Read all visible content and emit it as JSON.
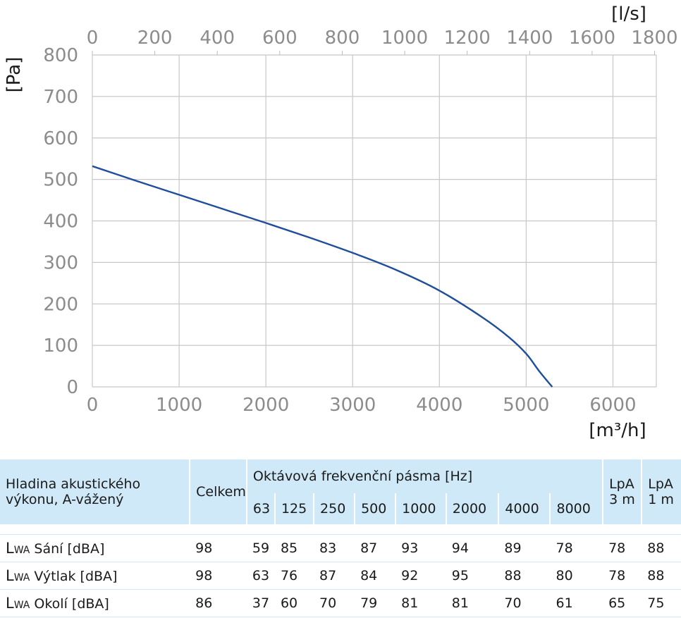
{
  "chart_data": {
    "type": "line",
    "xlabel": "[m³/h]",
    "x2label": "[l/s]",
    "ylabel": "[Pa]",
    "xlim": [
      0,
      6500
    ],
    "x2lim": [
      0,
      1805.6
    ],
    "ylim": [
      0,
      800
    ],
    "xticks": [
      0,
      1000,
      2000,
      3000,
      4000,
      5000,
      6000
    ],
    "x2ticks": [
      0,
      200,
      400,
      600,
      800,
      1000,
      1200,
      1400,
      1600,
      1800
    ],
    "yticks": [
      0,
      100,
      200,
      300,
      400,
      500,
      600,
      700,
      800
    ],
    "grid": true,
    "series": [
      {
        "color": "#1f4e9a",
        "x": [
          0,
          500,
          1000,
          1500,
          2000,
          2500,
          3000,
          3500,
          4000,
          4500,
          4800,
          5000,
          5150,
          5300
        ],
        "y": [
          532,
          497,
          463,
          429,
          395,
          360,
          323,
          282,
          232,
          167,
          120,
          80,
          38,
          0
        ]
      }
    ]
  },
  "acoustic_table": {
    "header_label": "Hladina akustického výkonu, A-vážený",
    "header_label_line1": "Hladina akustického",
    "header_label_line2": "výkonu, A-vážený",
    "celkem": "Celkem",
    "octave_title": "Oktávová frekvenční pásma [Hz]",
    "bands": [
      "63",
      "125",
      "250",
      "500",
      "1000",
      "2000",
      "4000",
      "8000"
    ],
    "lpa3": "LpA 3 m",
    "lpa3_line1": "LpA",
    "lpa3_line2": "3 m",
    "lpa1": "LpA 1 m",
    "lpa1_line1": "LpA",
    "lpa1_line2": "1 m",
    "rows": [
      {
        "lw": "L",
        "sub": "WA",
        "label": "Sání [dBA]",
        "values": [
          "98",
          "59",
          "85",
          "83",
          "87",
          "93",
          "94",
          "89",
          "78",
          "78",
          "88"
        ]
      },
      {
        "lw": "L",
        "sub": "WA",
        "label": "Výtlak [dBA]",
        "values": [
          "98",
          "63",
          "76",
          "87",
          "84",
          "92",
          "95",
          "88",
          "80",
          "78",
          "88"
        ]
      },
      {
        "lw": "L",
        "sub": "WA",
        "label": "Okolí [dBA]",
        "values": [
          "86",
          "37",
          "60",
          "70",
          "79",
          "81",
          "81",
          "70",
          "61",
          "65",
          "75"
        ]
      }
    ]
  }
}
